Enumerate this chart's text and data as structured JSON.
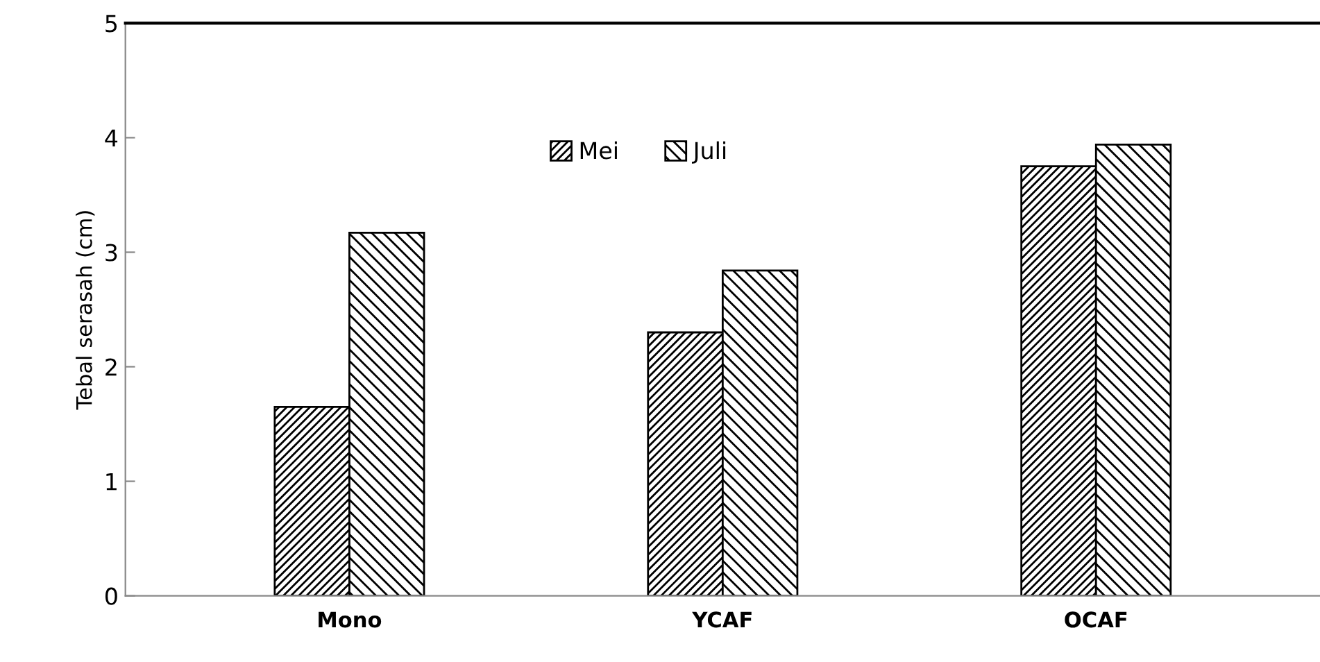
{
  "chart_data": {
    "type": "bar",
    "ylabel": "Tebal serasah (cm)",
    "categories": [
      "Mono",
      "YCAF",
      "OCAF"
    ],
    "series": [
      {
        "name": "Mei",
        "color": "#000000",
        "values": [
          1.65,
          2.3,
          3.75
        ]
      },
      {
        "name": "Juli",
        "color": "#000000",
        "values": [
          3.17,
          2.84,
          3.94
        ]
      }
    ],
    "ylim": [
      0,
      5
    ],
    "yticks": [
      0,
      1,
      2,
      3,
      4,
      5
    ],
    "grid": false,
    "legend": "top"
  }
}
